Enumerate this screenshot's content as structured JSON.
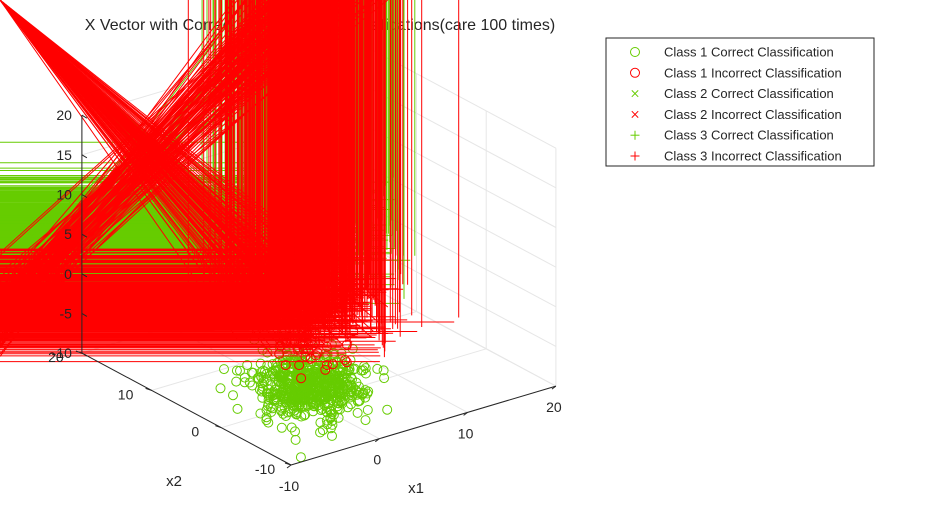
{
  "chart_data": {
    "type": "scatter",
    "title": "X Vector with Correct and Incorrect Classifications(care 100 times)",
    "xlabel": "x1",
    "ylabel": "x2",
    "zlabel": "",
    "xlim": [
      -10,
      20
    ],
    "ylim": [
      -10,
      20
    ],
    "zlim": [
      -10,
      20
    ],
    "xticks": [
      "-10",
      "0",
      "10",
      "20"
    ],
    "yticks": [
      "-10",
      "0",
      "10",
      "20"
    ],
    "zticks": [
      "-10",
      "-5",
      "0",
      "5",
      "10",
      "15",
      "20"
    ],
    "grid": true,
    "legend_position": "top-right outside",
    "colors": {
      "correct": "#66cc00",
      "incorrect": "#ff0000",
      "axis": "#262626",
      "grid": "#e6e6e6"
    },
    "series": [
      {
        "name": "Class 1 Correct Classification",
        "marker": "circle",
        "color": "#66cc00",
        "center": [
          0,
          0,
          -8
        ],
        "spread": [
          2.5,
          2.5,
          1.4
        ],
        "count": 650
      },
      {
        "name": "Class 1 Incorrect Classification",
        "marker": "circle",
        "color": "#ff0000",
        "center": [
          0,
          0,
          -3
        ],
        "spread": [
          2.0,
          2.0,
          1.0
        ],
        "count": 40
      },
      {
        "name": "Class 2 Correct Classification",
        "marker": "x",
        "color": "#66cc00",
        "center": [
          0,
          0,
          0
        ],
        "spread": [
          2.5,
          2.5,
          2.0
        ],
        "count": 20
      },
      {
        "name": "Class 2 Incorrect Classification",
        "marker": "x",
        "color": "#ff0000",
        "center": [
          0,
          0,
          1
        ],
        "spread": [
          3.0,
          3.0,
          1.5
        ],
        "count": 120
      },
      {
        "name": "Class 3 Correct Classification",
        "marker": "plus",
        "color": "#66cc00",
        "center": [
          0,
          0,
          11
        ],
        "spread": [
          3.5,
          3.5,
          2.5
        ],
        "count": 700
      },
      {
        "name": "Class 3 Incorrect Classification",
        "marker": "plus",
        "color": "#ff0000",
        "center": [
          0,
          0,
          2
        ],
        "spread": [
          3.5,
          3.5,
          1.5
        ],
        "count": 650
      }
    ]
  }
}
